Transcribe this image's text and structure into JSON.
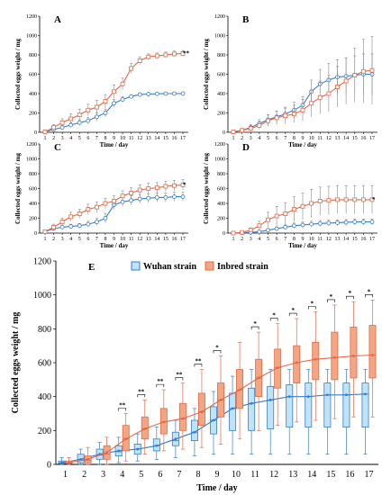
{
  "colors": {
    "wuhan": "#3a7dc9",
    "wuhan_fill": "#bfe3f7",
    "inbred": "#e06a4a",
    "inbred_fill": "#f4a582",
    "axis": "#000000"
  },
  "legend": {
    "wuhan_label": "Wuhan strain",
    "inbred_label": "Inbred strain"
  },
  "chart_data": [
    {
      "panel": "A",
      "type": "line",
      "xlabel": "Time / day",
      "ylabel": "Collected eggs weight / mg",
      "x": [
        1,
        2,
        3,
        4,
        5,
        6,
        7,
        8,
        9,
        10,
        11,
        12,
        13,
        14,
        15,
        16,
        17
      ],
      "ylim": [
        0,
        1200
      ],
      "yticks": [
        0,
        200,
        400,
        600,
        800,
        1000,
        1200
      ],
      "significance": "**",
      "series": [
        {
          "strain": "wuhan",
          "values": [
            5,
            30,
            50,
            75,
            100,
            120,
            160,
            200,
            300,
            340,
            370,
            390,
            395,
            398,
            400,
            400,
            400
          ],
          "errors": [
            5,
            15,
            20,
            25,
            30,
            35,
            40,
            40,
            40,
            30,
            20,
            15,
            10,
            10,
            10,
            10,
            10
          ]
        },
        {
          "strain": "inbred",
          "values": [
            5,
            50,
            100,
            140,
            180,
            230,
            260,
            320,
            420,
            500,
            660,
            740,
            780,
            790,
            800,
            810,
            815
          ],
          "errors": [
            5,
            30,
            40,
            50,
            60,
            60,
            70,
            70,
            70,
            60,
            50,
            40,
            30,
            30,
            30,
            30,
            30
          ]
        }
      ]
    },
    {
      "panel": "B",
      "type": "line",
      "xlabel": "Time / day",
      "ylabel": "Collected eggs weight / mg",
      "x": [
        1,
        2,
        3,
        4,
        5,
        6,
        7,
        8,
        9,
        10,
        11,
        12,
        13,
        14,
        15,
        16,
        17
      ],
      "ylim": [
        0,
        1200
      ],
      "yticks": [
        0,
        200,
        400,
        600,
        800,
        1000,
        1200
      ],
      "significance": "",
      "series": [
        {
          "strain": "wuhan",
          "values": [
            5,
            20,
            50,
            90,
            130,
            160,
            190,
            230,
            280,
            420,
            500,
            540,
            570,
            580,
            590,
            600,
            600
          ],
          "errors": [
            5,
            20,
            30,
            40,
            50,
            60,
            70,
            80,
            90,
            120,
            150,
            170,
            180,
            190,
            200,
            210,
            210
          ]
        },
        {
          "strain": "inbred",
          "values": [
            5,
            20,
            40,
            70,
            120,
            150,
            170,
            190,
            230,
            300,
            360,
            400,
            470,
            530,
            590,
            630,
            640
          ],
          "errors": [
            5,
            20,
            30,
            40,
            60,
            70,
            80,
            90,
            110,
            140,
            170,
            190,
            210,
            240,
            280,
            330,
            350
          ]
        }
      ]
    },
    {
      "panel": "C",
      "type": "line",
      "xlabel": "Time / day",
      "ylabel": "Collected eggs weight / mg",
      "x": [
        1,
        2,
        3,
        4,
        5,
        6,
        7,
        8,
        9,
        10,
        11,
        12,
        13,
        14,
        15,
        16,
        17
      ],
      "ylim": [
        0,
        1200
      ],
      "yticks": [
        0,
        200,
        400,
        600,
        800,
        1000,
        1200
      ],
      "significance": "*",
      "series": [
        {
          "strain": "wuhan",
          "values": [
            20,
            60,
            80,
            90,
            100,
            120,
            150,
            200,
            380,
            420,
            440,
            460,
            470,
            480,
            480,
            490,
            490
          ],
          "errors": [
            10,
            20,
            20,
            30,
            30,
            40,
            50,
            60,
            60,
            60,
            60,
            60,
            60,
            60,
            60,
            60,
            60
          ]
        },
        {
          "strain": "inbred",
          "values": [
            20,
            80,
            150,
            220,
            260,
            320,
            350,
            400,
            430,
            500,
            540,
            580,
            600,
            610,
            630,
            640,
            650
          ],
          "errors": [
            10,
            40,
            50,
            60,
            60,
            70,
            70,
            70,
            70,
            70,
            70,
            70,
            70,
            70,
            70,
            70,
            70
          ]
        }
      ]
    },
    {
      "panel": "D",
      "type": "line",
      "xlabel": "Time / day",
      "ylabel": "Collected eggs weight / mg",
      "x": [
        1,
        2,
        3,
        4,
        5,
        6,
        7,
        8,
        9,
        10,
        11,
        12,
        13,
        14,
        15,
        16,
        17
      ],
      "ylim": [
        0,
        1200
      ],
      "yticks": [
        0,
        200,
        400,
        600,
        800,
        1000,
        1200
      ],
      "significance": "*",
      "series": [
        {
          "strain": "wuhan",
          "values": [
            0,
            5,
            10,
            20,
            40,
            60,
            80,
            100,
            110,
            120,
            130,
            135,
            140,
            145,
            150,
            150,
            150
          ],
          "errors": [
            0,
            5,
            10,
            15,
            20,
            25,
            30,
            35,
            40,
            40,
            40,
            40,
            40,
            40,
            40,
            40,
            40
          ]
        },
        {
          "strain": "inbred",
          "values": [
            0,
            10,
            40,
            100,
            180,
            230,
            260,
            320,
            360,
            400,
            430,
            440,
            450,
            450,
            450,
            450,
            450
          ],
          "errors": [
            0,
            10,
            30,
            60,
            100,
            130,
            150,
            170,
            180,
            190,
            190,
            190,
            190,
            190,
            190,
            190,
            190
          ]
        }
      ]
    },
    {
      "panel": "E",
      "type": "box",
      "xlabel": "Time / day",
      "ylabel": "Collected eggs weight / mg",
      "x": [
        1,
        2,
        3,
        4,
        5,
        6,
        7,
        8,
        9,
        10,
        11,
        12,
        13,
        14,
        15,
        16,
        17
      ],
      "ylim": [
        0,
        1200
      ],
      "yticks": [
        0,
        200,
        400,
        600,
        800,
        1000,
        1200
      ],
      "significance": [
        "",
        "",
        "",
        "**",
        "**",
        "**",
        "**",
        "**",
        "*",
        "",
        "*",
        "*",
        "*",
        "*",
        "*",
        "*",
        "*"
      ],
      "series": [
        {
          "strain": "wuhan",
          "means": [
            10,
            30,
            60,
            80,
            90,
            110,
            150,
            190,
            260,
            330,
            360,
            380,
            400,
            400,
            410,
            410,
            415
          ],
          "boxes": [
            {
              "q1": 5,
              "median": 10,
              "q3": 20,
              "min": 0,
              "max": 40
            },
            {
              "q1": 10,
              "median": 30,
              "q3": 60,
              "min": 0,
              "max": 90
            },
            {
              "q1": 30,
              "median": 55,
              "q3": 90,
              "min": 0,
              "max": 130
            },
            {
              "q1": 50,
              "median": 75,
              "q3": 110,
              "min": 10,
              "max": 160
            },
            {
              "q1": 60,
              "median": 90,
              "q3": 120,
              "min": 20,
              "max": 180
            },
            {
              "q1": 80,
              "median": 110,
              "q3": 150,
              "min": 30,
              "max": 220
            },
            {
              "q1": 110,
              "median": 140,
              "q3": 190,
              "min": 40,
              "max": 260
            },
            {
              "q1": 140,
              "median": 190,
              "q3": 260,
              "min": 50,
              "max": 330
            },
            {
              "q1": 180,
              "median": 260,
              "q3": 340,
              "min": 60,
              "max": 430
            },
            {
              "q1": 200,
              "median": 330,
              "q3": 420,
              "min": 60,
              "max": 520
            },
            {
              "q1": 200,
              "median": 360,
              "q3": 450,
              "min": 60,
              "max": 560
            },
            {
              "q1": 210,
              "median": 380,
              "q3": 460,
              "min": 60,
              "max": 560
            },
            {
              "q1": 220,
              "median": 400,
              "q3": 470,
              "min": 60,
              "max": 560
            },
            {
              "q1": 220,
              "median": 400,
              "q3": 480,
              "min": 60,
              "max": 560
            },
            {
              "q1": 220,
              "median": 410,
              "q3": 480,
              "min": 60,
              "max": 560
            },
            {
              "q1": 220,
              "median": 410,
              "q3": 480,
              "min": 60,
              "max": 560
            },
            {
              "q1": 220,
              "median": 415,
              "q3": 480,
              "min": 60,
              "max": 560
            }
          ]
        },
        {
          "strain": "inbred",
          "means": [
            10,
            30,
            70,
            150,
            210,
            250,
            270,
            310,
            380,
            440,
            510,
            570,
            600,
            620,
            630,
            640,
            645
          ],
          "boxes": [
            {
              "q1": 5,
              "median": 10,
              "q3": 20,
              "min": 0,
              "max": 40
            },
            {
              "q1": 10,
              "median": 25,
              "q3": 50,
              "min": 0,
              "max": 100
            },
            {
              "q1": 30,
              "median": 60,
              "q3": 110,
              "min": 0,
              "max": 160
            },
            {
              "q1": 80,
              "median": 150,
              "q3": 230,
              "min": 20,
              "max": 300
            },
            {
              "q1": 150,
              "median": 210,
              "q3": 280,
              "min": 60,
              "max": 380
            },
            {
              "q1": 180,
              "median": 250,
              "q3": 330,
              "min": 80,
              "max": 440
            },
            {
              "q1": 200,
              "median": 270,
              "q3": 360,
              "min": 90,
              "max": 480
            },
            {
              "q1": 230,
              "median": 310,
              "q3": 420,
              "min": 100,
              "max": 560
            },
            {
              "q1": 280,
              "median": 380,
              "q3": 480,
              "min": 120,
              "max": 640
            },
            {
              "q1": 330,
              "median": 440,
              "q3": 560,
              "min": 150,
              "max": 720
            },
            {
              "q1": 400,
              "median": 510,
              "q3": 620,
              "min": 200,
              "max": 780
            },
            {
              "q1": 450,
              "median": 570,
              "q3": 680,
              "min": 230,
              "max": 830
            },
            {
              "q1": 480,
              "median": 600,
              "q3": 700,
              "min": 250,
              "max": 860
            },
            {
              "q1": 500,
              "median": 620,
              "q3": 720,
              "min": 260,
              "max": 900
            },
            {
              "q1": 500,
              "median": 630,
              "q3": 780,
              "min": 270,
              "max": 940
            },
            {
              "q1": 510,
              "median": 640,
              "q3": 810,
              "min": 280,
              "max": 960
            },
            {
              "q1": 510,
              "median": 645,
              "q3": 820,
              "min": 280,
              "max": 970
            }
          ]
        }
      ]
    }
  ]
}
